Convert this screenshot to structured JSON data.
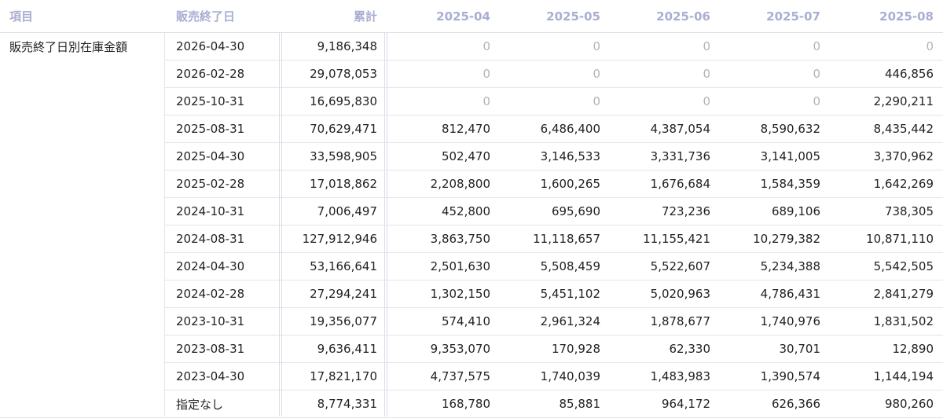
{
  "table": {
    "columns": [
      "項目",
      "販売終了日",
      "累計",
      "2025-04",
      "2025-05",
      "2025-06",
      "2025-07",
      "2025-08"
    ],
    "item_label": "販売終了日別在庫金額",
    "rows": [
      {
        "date": "2026-04-30",
        "total": "9,186,348",
        "months": [
          "0",
          "0",
          "0",
          "0",
          "0"
        ]
      },
      {
        "date": "2026-02-28",
        "total": "29,078,053",
        "months": [
          "0",
          "0",
          "0",
          "0",
          "446,856"
        ]
      },
      {
        "date": "2025-10-31",
        "total": "16,695,830",
        "months": [
          "0",
          "0",
          "0",
          "0",
          "2,290,211"
        ]
      },
      {
        "date": "2025-08-31",
        "total": "70,629,471",
        "months": [
          "812,470",
          "6,486,400",
          "4,387,054",
          "8,590,632",
          "8,435,442"
        ]
      },
      {
        "date": "2025-04-30",
        "total": "33,598,905",
        "months": [
          "502,470",
          "3,146,533",
          "3,331,736",
          "3,141,005",
          "3,370,962"
        ]
      },
      {
        "date": "2025-02-28",
        "total": "17,018,862",
        "months": [
          "2,208,800",
          "1,600,265",
          "1,676,684",
          "1,584,359",
          "1,642,269"
        ]
      },
      {
        "date": "2024-10-31",
        "total": "7,006,497",
        "months": [
          "452,800",
          "695,690",
          "723,236",
          "689,106",
          "738,305"
        ]
      },
      {
        "date": "2024-08-31",
        "total": "127,912,946",
        "months": [
          "3,863,750",
          "11,118,657",
          "11,155,421",
          "10,279,382",
          "10,871,110"
        ]
      },
      {
        "date": "2024-04-30",
        "total": "53,166,641",
        "months": [
          "2,501,630",
          "5,508,459",
          "5,522,607",
          "5,234,388",
          "5,542,505"
        ]
      },
      {
        "date": "2024-02-28",
        "total": "27,294,241",
        "months": [
          "1,302,150",
          "5,451,102",
          "5,020,963",
          "4,786,431",
          "2,841,279"
        ]
      },
      {
        "date": "2023-10-31",
        "total": "19,356,077",
        "months": [
          "574,410",
          "2,961,324",
          "1,878,677",
          "1,740,976",
          "1,831,502"
        ]
      },
      {
        "date": "2023-08-31",
        "total": "9,636,411",
        "months": [
          "9,353,070",
          "170,928",
          "62,330",
          "30,701",
          "12,890"
        ]
      },
      {
        "date": "2023-04-30",
        "total": "17,821,170",
        "months": [
          "4,737,575",
          "1,740,039",
          "1,483,983",
          "1,390,574",
          "1,144,194"
        ]
      },
      {
        "date": "指定なし",
        "total": "8,774,331",
        "months": [
          "168,780",
          "85,881",
          "964,172",
          "626,366",
          "980,260"
        ]
      }
    ]
  },
  "colors": {
    "header_text": "#a9aed2",
    "zero_text": "#b4b4b8",
    "grid_line": "#e4e4ea"
  }
}
